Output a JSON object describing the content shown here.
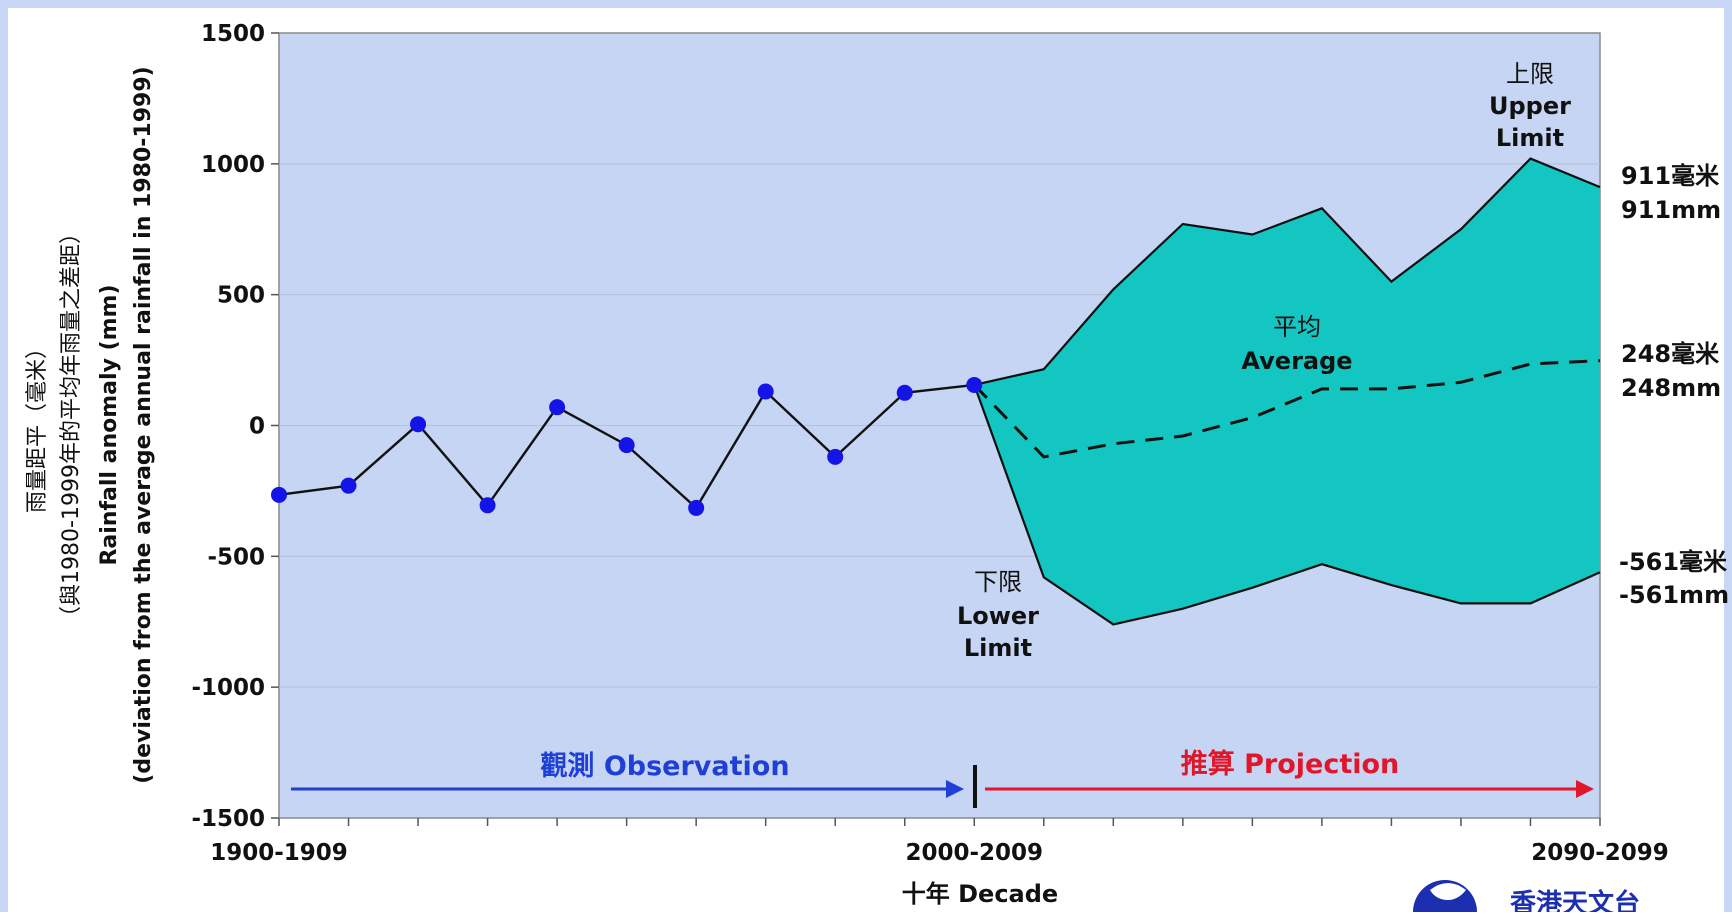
{
  "chart_data": {
    "type": "line",
    "title": "",
    "ylabel_lines": [
      "雨量距平（毫米）",
      "（與1980-1999年的平均年雨量之差距）",
      "Rainfall anomaly (mm)",
      "(deviation from the average annual rainfall in 1980-1999)"
    ],
    "xlabel": "十年 Decade",
    "ylim": [
      -1500,
      1500
    ],
    "yticks": [
      1500,
      1000,
      500,
      0,
      -500,
      -1000,
      -1500
    ],
    "x_tick_labels": [
      {
        "x": 0,
        "label": "1900-1909"
      },
      {
        "x": 10,
        "label": "2000-2009"
      },
      {
        "x": 19,
        "label": "2090-2099"
      }
    ],
    "observation": {
      "x": [
        0,
        1,
        2,
        3,
        4,
        5,
        6,
        7,
        8,
        9,
        10
      ],
      "values": [
        -265,
        -230,
        5,
        -305,
        70,
        -75,
        -315,
        130,
        -120,
        125,
        155
      ]
    },
    "projection_upper": {
      "label_zh": "上限",
      "label_en": "Upper",
      "label_en2": "Limit",
      "x": [
        10,
        11,
        12,
        13,
        14,
        15,
        16,
        17,
        18,
        19
      ],
      "values": [
        155,
        215,
        520,
        770,
        730,
        830,
        550,
        750,
        1020,
        911
      ]
    },
    "projection_average": {
      "label_zh": "平均",
      "label_en": "Average",
      "x": [
        10,
        11,
        12,
        13,
        14,
        15,
        16,
        17,
        18,
        19
      ],
      "values": [
        155,
        -120,
        -70,
        -40,
        30,
        140,
        140,
        165,
        235,
        248
      ]
    },
    "projection_lower": {
      "label_zh": "下限",
      "label_en": "Lower",
      "label_en2": "Limit",
      "x": [
        10,
        11,
        12,
        13,
        14,
        15,
        16,
        17,
        18,
        19
      ],
      "values": [
        155,
        -580,
        -760,
        -700,
        -620,
        -530,
        -610,
        -680,
        -680,
        -561
      ]
    },
    "end_labels": {
      "upper_zh": "911毫米",
      "upper_en": "911mm",
      "avg_zh": "248毫米",
      "avg_en": "248mm",
      "lower_zh": "-561毫米",
      "lower_en": "-561mm"
    },
    "periods": {
      "observation": "觀測  Observation",
      "projection": "推算   Projection"
    },
    "colors": {
      "frame_bg": "#c8d6f6",
      "plot_bg": "#c6d5f3",
      "band": "#14c6c2",
      "obs_line": "#111111",
      "obs_point": "#1414e6",
      "obs_arrow": "#1f3fd6",
      "proj_arrow": "#e0162a"
    },
    "grid": true,
    "legend": "none"
  },
  "logo": {
    "text": "香港天文台"
  }
}
